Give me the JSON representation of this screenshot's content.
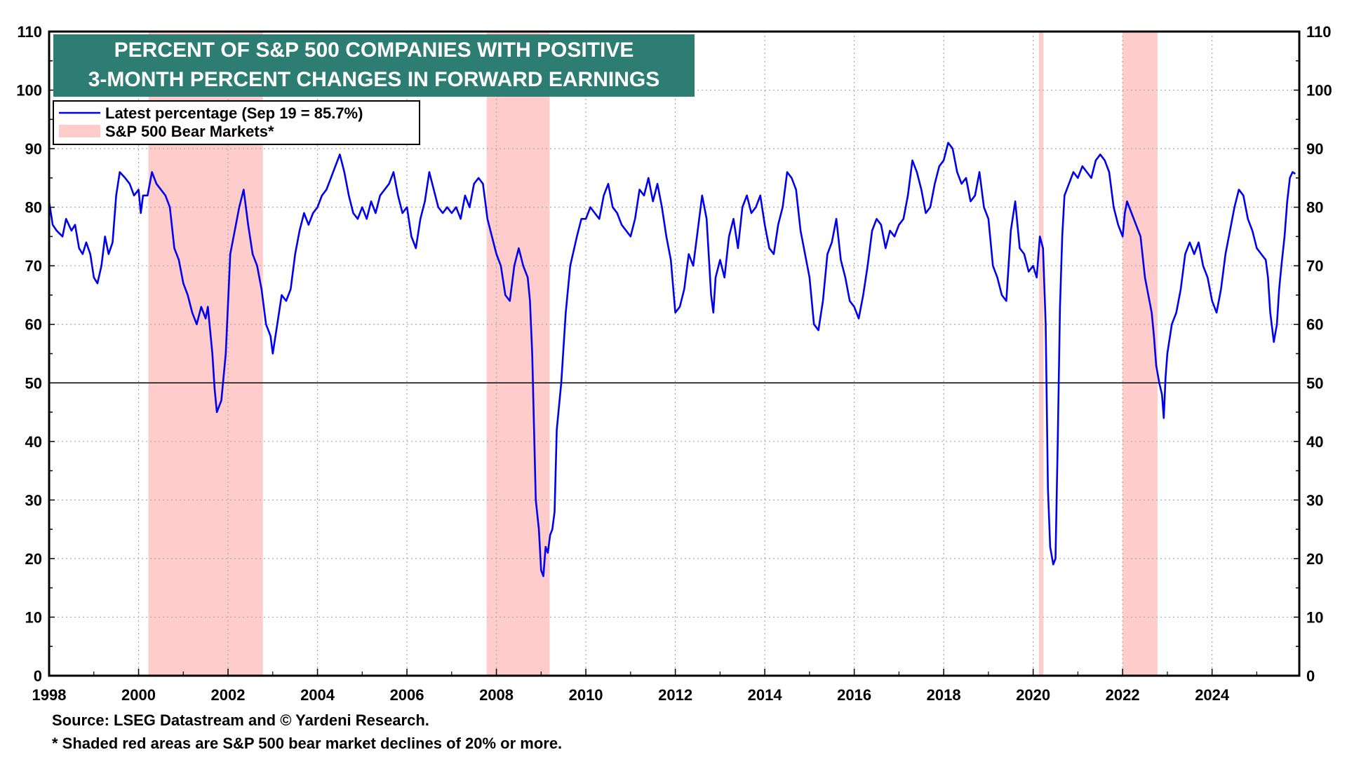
{
  "chart_data": {
    "type": "line",
    "title": [
      "PERCENT OF S&P 500 COMPANIES WITH POSITIVE",
      "3-MONTH PERCENT CHANGES IN FORWARD EARNINGS"
    ],
    "xlabel": "",
    "ylabel": "",
    "xlim": [
      1998,
      2025.95
    ],
    "ylim": [
      0,
      110
    ],
    "x_ticks": [
      1998,
      2000,
      2002,
      2004,
      2006,
      2008,
      2010,
      2012,
      2014,
      2016,
      2018,
      2020,
      2022,
      2024
    ],
    "y_ticks": [
      0,
      10,
      20,
      30,
      40,
      50,
      60,
      70,
      80,
      90,
      100,
      110
    ],
    "reference_line": 50,
    "grid": true,
    "legend": {
      "position": "top-left",
      "entries": [
        {
          "label": "Latest percentage (Sep 19 = 85.7%)",
          "color": "#0000ee",
          "kind": "line"
        },
        {
          "label": "S&P 500 Bear Markets*",
          "color": "#ffcccc",
          "kind": "area"
        }
      ]
    },
    "bear_markets": [
      {
        "start": 2000.22,
        "end": 2002.78
      },
      {
        "start": 2007.78,
        "end": 2009.19
      },
      {
        "start": 2020.13,
        "end": 2020.23
      },
      {
        "start": 2022.0,
        "end": 2022.78
      }
    ],
    "series": [
      {
        "name": "Latest percentage (Sep 19 = 85.7%)",
        "color": "#0000ee",
        "points": [
          [
            1998.0,
            81
          ],
          [
            1998.08,
            77
          ],
          [
            1998.17,
            76
          ],
          [
            1998.3,
            75
          ],
          [
            1998.38,
            78
          ],
          [
            1998.5,
            76
          ],
          [
            1998.58,
            77
          ],
          [
            1998.67,
            73
          ],
          [
            1998.75,
            72
          ],
          [
            1998.83,
            74
          ],
          [
            1998.92,
            72
          ],
          [
            1999.0,
            68
          ],
          [
            1999.08,
            67
          ],
          [
            1999.17,
            70
          ],
          [
            1999.25,
            75
          ],
          [
            1999.33,
            72
          ],
          [
            1999.42,
            74
          ],
          [
            1999.5,
            82
          ],
          [
            1999.58,
            86
          ],
          [
            1999.7,
            85
          ],
          [
            1999.8,
            84
          ],
          [
            1999.9,
            82
          ],
          [
            2000.0,
            83
          ],
          [
            2000.05,
            79
          ],
          [
            2000.1,
            82
          ],
          [
            2000.2,
            82
          ],
          [
            2000.3,
            86
          ],
          [
            2000.4,
            84
          ],
          [
            2000.5,
            83
          ],
          [
            2000.6,
            82
          ],
          [
            2000.7,
            80
          ],
          [
            2000.8,
            73
          ],
          [
            2000.9,
            71
          ],
          [
            2001.0,
            67
          ],
          [
            2001.1,
            65
          ],
          [
            2001.2,
            62
          ],
          [
            2001.3,
            60
          ],
          [
            2001.4,
            63
          ],
          [
            2001.5,
            61
          ],
          [
            2001.55,
            63
          ],
          [
            2001.65,
            55
          ],
          [
            2001.7,
            49
          ],
          [
            2001.75,
            45
          ],
          [
            2001.85,
            47
          ],
          [
            2001.95,
            55
          ],
          [
            2002.05,
            72
          ],
          [
            2002.15,
            76
          ],
          [
            2002.25,
            80
          ],
          [
            2002.35,
            83
          ],
          [
            2002.45,
            77
          ],
          [
            2002.55,
            72
          ],
          [
            2002.65,
            70
          ],
          [
            2002.75,
            66
          ],
          [
            2002.85,
            60
          ],
          [
            2002.95,
            58
          ],
          [
            2003.0,
            55
          ],
          [
            2003.1,
            60
          ],
          [
            2003.2,
            65
          ],
          [
            2003.3,
            64
          ],
          [
            2003.4,
            66
          ],
          [
            2003.5,
            72
          ],
          [
            2003.6,
            76
          ],
          [
            2003.7,
            79
          ],
          [
            2003.8,
            77
          ],
          [
            2003.9,
            79
          ],
          [
            2004.0,
            80
          ],
          [
            2004.1,
            82
          ],
          [
            2004.2,
            83
          ],
          [
            2004.3,
            85
          ],
          [
            2004.4,
            87
          ],
          [
            2004.5,
            89
          ],
          [
            2004.6,
            86
          ],
          [
            2004.7,
            82
          ],
          [
            2004.8,
            79
          ],
          [
            2004.9,
            78
          ],
          [
            2005.0,
            80
          ],
          [
            2005.1,
            78
          ],
          [
            2005.2,
            81
          ],
          [
            2005.3,
            79
          ],
          [
            2005.4,
            82
          ],
          [
            2005.5,
            83
          ],
          [
            2005.6,
            84
          ],
          [
            2005.7,
            86
          ],
          [
            2005.8,
            82
          ],
          [
            2005.9,
            79
          ],
          [
            2006.0,
            80
          ],
          [
            2006.1,
            75
          ],
          [
            2006.2,
            73
          ],
          [
            2006.3,
            78
          ],
          [
            2006.4,
            81
          ],
          [
            2006.5,
            86
          ],
          [
            2006.6,
            83
          ],
          [
            2006.7,
            80
          ],
          [
            2006.8,
            79
          ],
          [
            2006.9,
            80
          ],
          [
            2007.0,
            79
          ],
          [
            2007.1,
            80
          ],
          [
            2007.2,
            78
          ],
          [
            2007.3,
            82
          ],
          [
            2007.4,
            80
          ],
          [
            2007.5,
            84
          ],
          [
            2007.6,
            85
          ],
          [
            2007.7,
            84
          ],
          [
            2007.8,
            78
          ],
          [
            2007.9,
            75
          ],
          [
            2008.0,
            72
          ],
          [
            2008.1,
            70
          ],
          [
            2008.2,
            65
          ],
          [
            2008.3,
            64
          ],
          [
            2008.4,
            70
          ],
          [
            2008.5,
            73
          ],
          [
            2008.6,
            70
          ],
          [
            2008.7,
            68
          ],
          [
            2008.75,
            64
          ],
          [
            2008.8,
            55
          ],
          [
            2008.88,
            30
          ],
          [
            2008.95,
            25
          ],
          [
            2009.0,
            18
          ],
          [
            2009.05,
            17
          ],
          [
            2009.1,
            22
          ],
          [
            2009.15,
            21
          ],
          [
            2009.2,
            24
          ],
          [
            2009.25,
            25
          ],
          [
            2009.3,
            28
          ],
          [
            2009.35,
            42
          ],
          [
            2009.45,
            50
          ],
          [
            2009.55,
            62
          ],
          [
            2009.65,
            70
          ],
          [
            2009.8,
            75
          ],
          [
            2009.9,
            78
          ],
          [
            2010.0,
            78
          ],
          [
            2010.1,
            80
          ],
          [
            2010.2,
            79
          ],
          [
            2010.3,
            78
          ],
          [
            2010.4,
            82
          ],
          [
            2010.5,
            84
          ],
          [
            2010.6,
            80
          ],
          [
            2010.7,
            79
          ],
          [
            2010.8,
            77
          ],
          [
            2010.9,
            76
          ],
          [
            2011.0,
            75
          ],
          [
            2011.1,
            78
          ],
          [
            2011.2,
            83
          ],
          [
            2011.3,
            82
          ],
          [
            2011.4,
            85
          ],
          [
            2011.5,
            81
          ],
          [
            2011.6,
            84
          ],
          [
            2011.7,
            80
          ],
          [
            2011.8,
            75
          ],
          [
            2011.9,
            71
          ],
          [
            2012.0,
            62
          ],
          [
            2012.1,
            63
          ],
          [
            2012.2,
            66
          ],
          [
            2012.3,
            72
          ],
          [
            2012.4,
            70
          ],
          [
            2012.5,
            76
          ],
          [
            2012.6,
            82
          ],
          [
            2012.7,
            78
          ],
          [
            2012.8,
            65
          ],
          [
            2012.85,
            62
          ],
          [
            2012.9,
            68
          ],
          [
            2013.0,
            71
          ],
          [
            2013.1,
            68
          ],
          [
            2013.2,
            75
          ],
          [
            2013.3,
            78
          ],
          [
            2013.4,
            73
          ],
          [
            2013.5,
            80
          ],
          [
            2013.6,
            82
          ],
          [
            2013.7,
            79
          ],
          [
            2013.8,
            80
          ],
          [
            2013.9,
            82
          ],
          [
            2014.0,
            77
          ],
          [
            2014.1,
            73
          ],
          [
            2014.2,
            72
          ],
          [
            2014.3,
            77
          ],
          [
            2014.4,
            80
          ],
          [
            2014.5,
            86
          ],
          [
            2014.6,
            85
          ],
          [
            2014.7,
            83
          ],
          [
            2014.8,
            76
          ],
          [
            2014.9,
            72
          ],
          [
            2015.0,
            68
          ],
          [
            2015.1,
            60
          ],
          [
            2015.2,
            59
          ],
          [
            2015.3,
            64
          ],
          [
            2015.4,
            72
          ],
          [
            2015.5,
            74
          ],
          [
            2015.6,
            78
          ],
          [
            2015.7,
            71
          ],
          [
            2015.8,
            68
          ],
          [
            2015.9,
            64
          ],
          [
            2016.0,
            63
          ],
          [
            2016.1,
            61
          ],
          [
            2016.2,
            65
          ],
          [
            2016.3,
            70
          ],
          [
            2016.4,
            76
          ],
          [
            2016.5,
            78
          ],
          [
            2016.6,
            77
          ],
          [
            2016.7,
            73
          ],
          [
            2016.8,
            76
          ],
          [
            2016.9,
            75
          ],
          [
            2017.0,
            77
          ],
          [
            2017.1,
            78
          ],
          [
            2017.2,
            82
          ],
          [
            2017.3,
            88
          ],
          [
            2017.4,
            86
          ],
          [
            2017.5,
            83
          ],
          [
            2017.6,
            79
          ],
          [
            2017.7,
            80
          ],
          [
            2017.8,
            84
          ],
          [
            2017.9,
            87
          ],
          [
            2018.0,
            88
          ],
          [
            2018.1,
            91
          ],
          [
            2018.2,
            90
          ],
          [
            2018.3,
            86
          ],
          [
            2018.4,
            84
          ],
          [
            2018.5,
            85
          ],
          [
            2018.6,
            81
          ],
          [
            2018.7,
            82
          ],
          [
            2018.8,
            86
          ],
          [
            2018.9,
            80
          ],
          [
            2019.0,
            78
          ],
          [
            2019.1,
            70
          ],
          [
            2019.2,
            68
          ],
          [
            2019.3,
            65
          ],
          [
            2019.4,
            64
          ],
          [
            2019.5,
            76
          ],
          [
            2019.6,
            81
          ],
          [
            2019.7,
            73
          ],
          [
            2019.8,
            72
          ],
          [
            2019.9,
            69
          ],
          [
            2020.0,
            70
          ],
          [
            2020.08,
            68
          ],
          [
            2020.15,
            75
          ],
          [
            2020.22,
            73
          ],
          [
            2020.28,
            60
          ],
          [
            2020.33,
            32
          ],
          [
            2020.38,
            22
          ],
          [
            2020.45,
            19
          ],
          [
            2020.5,
            20
          ],
          [
            2020.55,
            40
          ],
          [
            2020.6,
            63
          ],
          [
            2020.65,
            75
          ],
          [
            2020.7,
            82
          ],
          [
            2020.8,
            84
          ],
          [
            2020.9,
            86
          ],
          [
            2021.0,
            85
          ],
          [
            2021.1,
            87
          ],
          [
            2021.2,
            86
          ],
          [
            2021.3,
            85
          ],
          [
            2021.4,
            88
          ],
          [
            2021.5,
            89
          ],
          [
            2021.6,
            88
          ],
          [
            2021.7,
            86
          ],
          [
            2021.8,
            80
          ],
          [
            2021.9,
            77
          ],
          [
            2022.0,
            75
          ],
          [
            2022.05,
            79
          ],
          [
            2022.1,
            81
          ],
          [
            2022.2,
            79
          ],
          [
            2022.3,
            77
          ],
          [
            2022.4,
            75
          ],
          [
            2022.5,
            68
          ],
          [
            2022.6,
            64
          ],
          [
            2022.65,
            62
          ],
          [
            2022.7,
            58
          ],
          [
            2022.75,
            53
          ],
          [
            2022.82,
            50
          ],
          [
            2022.88,
            48
          ],
          [
            2022.92,
            44
          ],
          [
            2022.96,
            51
          ],
          [
            2023.0,
            55
          ],
          [
            2023.1,
            60
          ],
          [
            2023.2,
            62
          ],
          [
            2023.3,
            66
          ],
          [
            2023.4,
            72
          ],
          [
            2023.5,
            74
          ],
          [
            2023.6,
            72
          ],
          [
            2023.7,
            74
          ],
          [
            2023.8,
            70
          ],
          [
            2023.9,
            68
          ],
          [
            2024.0,
            64
          ],
          [
            2024.1,
            62
          ],
          [
            2024.2,
            66
          ],
          [
            2024.3,
            72
          ],
          [
            2024.4,
            76
          ],
          [
            2024.5,
            80
          ],
          [
            2024.6,
            83
          ],
          [
            2024.7,
            82
          ],
          [
            2024.8,
            78
          ],
          [
            2024.9,
            76
          ],
          [
            2025.0,
            73
          ],
          [
            2025.1,
            72
          ],
          [
            2025.2,
            71
          ],
          [
            2025.25,
            68
          ],
          [
            2025.3,
            62
          ],
          [
            2025.38,
            57
          ],
          [
            2025.45,
            60
          ],
          [
            2025.5,
            66
          ],
          [
            2025.55,
            70
          ],
          [
            2025.62,
            75
          ],
          [
            2025.68,
            81
          ],
          [
            2025.74,
            85
          ],
          [
            2025.8,
            86
          ],
          [
            2025.86,
            85.7
          ]
        ]
      }
    ],
    "source": "Source: LSEG Datastream and © Yardeni Research.",
    "footnote": "* Shaded red areas are S&P 500 bear market declines of 20% or more."
  }
}
